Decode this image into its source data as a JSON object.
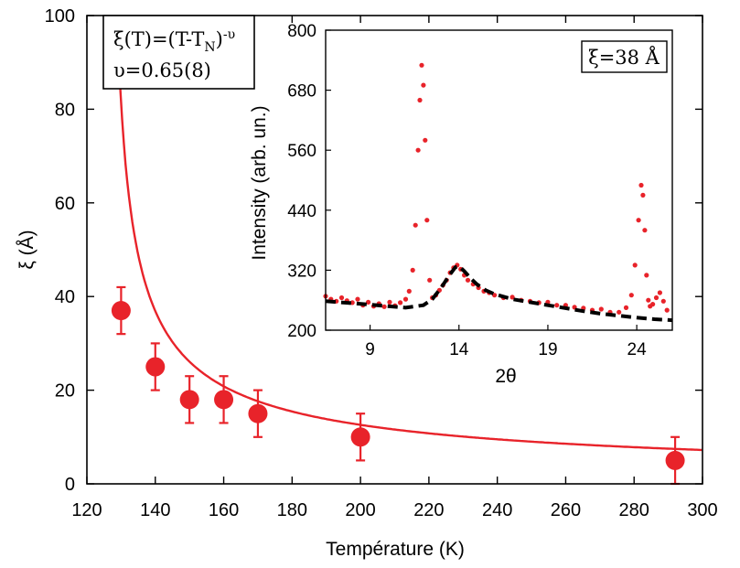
{
  "chart_data": [
    {
      "type": "scatter",
      "title": "",
      "xlabel": "Température (K)",
      "ylabel": "ξ (Å)",
      "xlim": [
        120,
        300
      ],
      "ylim": [
        0,
        100
      ],
      "xticks": [
        "120",
        "140",
        "160",
        "180",
        "200",
        "220",
        "240",
        "260",
        "280",
        "300"
      ],
      "yticks": [
        "0",
        "20",
        "40",
        "60",
        "80",
        "100"
      ],
      "series": [
        {
          "name": "data",
          "x": [
            130,
            140,
            150,
            160,
            170,
            200,
            292
          ],
          "y": [
            37,
            25,
            18,
            18,
            15,
            10,
            5
          ],
          "yerr": [
            5,
            5,
            5,
            5,
            5,
            5,
            5
          ],
          "color": "#e8232a"
        },
        {
          "name": "fit",
          "type": "line",
          "model": "xi = A*(T - TN)^(-nu)",
          "A": 207,
          "TN": 125.8,
          "nu": 0.65,
          "color": "#e8232a"
        }
      ],
      "annotation": {
        "formula_prefix": "ξ(T)=(T-T",
        "formula_sub": "N",
        "formula_close": ")",
        "formula_sup": "-υ",
        "nu_text": "υ=0.65(8)"
      }
    },
    {
      "type": "scatter",
      "title": "",
      "xlabel": "2θ",
      "ylabel": "Intensity (arb. un.)",
      "xlim": [
        6.5,
        26
      ],
      "ylim": [
        200,
        800
      ],
      "xticks": [
        "9",
        "14",
        "19",
        "24"
      ],
      "yticks": [
        "200",
        "320",
        "440",
        "560",
        "680",
        "800"
      ],
      "annotation": "ξ=38 Å",
      "series": [
        {
          "name": "measured",
          "color": "#e8232a",
          "x": [
            6.5,
            6.8,
            7.1,
            7.4,
            7.7,
            8.0,
            8.3,
            8.6,
            8.9,
            9.2,
            9.5,
            9.8,
            10.1,
            10.4,
            10.7,
            11.0,
            11.2,
            11.4,
            11.55,
            11.7,
            11.8,
            11.9,
            12.0,
            12.1,
            12.2,
            12.35,
            12.5,
            12.7,
            12.9,
            13.1,
            13.3,
            13.5,
            13.7,
            13.9,
            14.1,
            14.3,
            14.5,
            14.8,
            15.1,
            15.4,
            15.7,
            16.0,
            16.5,
            17.0,
            17.5,
            18.0,
            18.5,
            19.0,
            19.5,
            20.0,
            20.5,
            21.0,
            21.5,
            22.0,
            22.5,
            23.0,
            23.4,
            23.7,
            23.9,
            24.1,
            24.25,
            24.35,
            24.45,
            24.55,
            24.65,
            24.75,
            24.9,
            25.1,
            25.3,
            25.5,
            25.7
          ],
          "y": [
            268,
            262,
            258,
            265,
            259,
            255,
            262,
            250,
            256,
            248,
            253,
            247,
            256,
            249,
            255,
            262,
            278,
            320,
            410,
            560,
            660,
            730,
            690,
            580,
            420,
            300,
            265,
            270,
            280,
            290,
            300,
            315,
            325,
            330,
            322,
            310,
            300,
            292,
            285,
            278,
            275,
            270,
            265,
            266,
            260,
            258,
            255,
            256,
            250,
            250,
            246,
            244,
            240,
            242,
            236,
            236,
            245,
            270,
            330,
            420,
            490,
            470,
            400,
            310,
            260,
            248,
            252,
            265,
            275,
            258,
            240
          ]
        },
        {
          "name": "fit",
          "type": "line",
          "color": "#000000",
          "dashed": true,
          "x": [
            6.5,
            8,
            9,
            10,
            11,
            12,
            12.5,
            13,
            13.5,
            13.8,
            14,
            14.3,
            14.7,
            15,
            15.5,
            16,
            17,
            18,
            19,
            20,
            21,
            22,
            23,
            24,
            25,
            26
          ],
          "y": [
            258,
            254,
            251,
            248,
            245,
            250,
            262,
            285,
            312,
            326,
            328,
            318,
            302,
            292,
            280,
            272,
            262,
            256,
            250,
            244,
            238,
            233,
            229,
            225,
            222,
            220
          ]
        }
      ]
    }
  ]
}
